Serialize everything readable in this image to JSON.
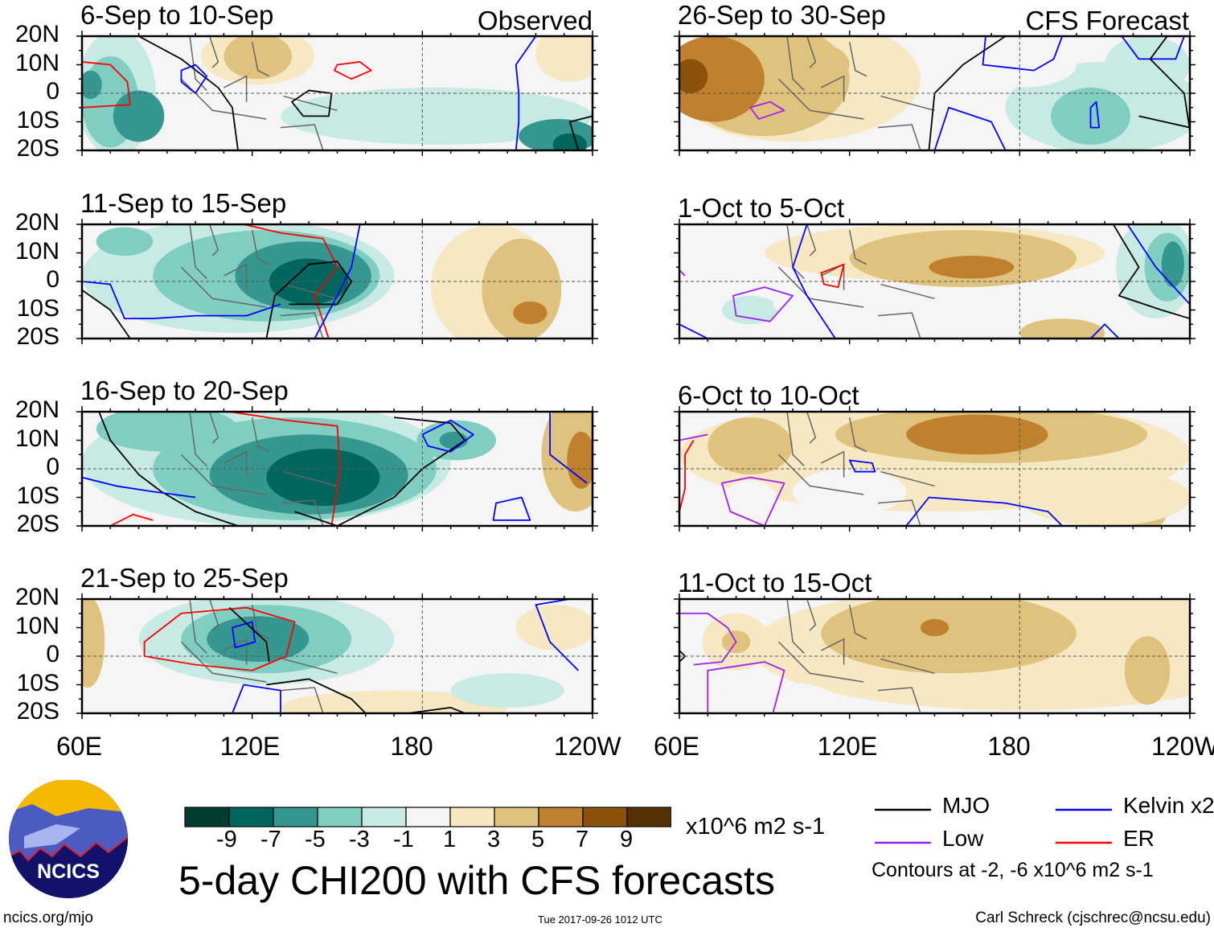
{
  "chart_data": [
    {
      "type": "heatmap",
      "title": "6-Sep to 10-Sep",
      "tag": "Observed",
      "xlim": [
        "60E",
        "120W"
      ],
      "ylim": [
        "20S",
        "20N"
      ]
    },
    {
      "type": "heatmap",
      "title": "11-Sep to 15-Sep",
      "tag": "",
      "xlim": [
        "60E",
        "120W"
      ],
      "ylim": [
        "20S",
        "20N"
      ]
    },
    {
      "type": "heatmap",
      "title": "16-Sep to 20-Sep",
      "tag": "",
      "xlim": [
        "60E",
        "120W"
      ],
      "ylim": [
        "20S",
        "20N"
      ]
    },
    {
      "type": "heatmap",
      "title": "21-Sep to 25-Sep",
      "tag": "",
      "xlim": [
        "60E",
        "120W"
      ],
      "ylim": [
        "20S",
        "20N"
      ]
    },
    {
      "type": "heatmap",
      "title": "26-Sep to 30-Sep",
      "tag": "CFS Forecast",
      "xlim": [
        "60E",
        "120W"
      ],
      "ylim": [
        "20S",
        "20N"
      ]
    },
    {
      "type": "heatmap",
      "title": "1-Oct to 5-Oct",
      "tag": "",
      "xlim": [
        "60E",
        "120W"
      ],
      "ylim": [
        "20S",
        "20N"
      ]
    },
    {
      "type": "heatmap",
      "title": "6-Oct to 10-Oct",
      "tag": "",
      "xlim": [
        "60E",
        "120W"
      ],
      "ylim": [
        "20S",
        "20N"
      ]
    },
    {
      "type": "heatmap",
      "title": "11-Oct to 15-Oct",
      "tag": "",
      "xlim": [
        "60E",
        "120W"
      ],
      "ylim": [
        "20S",
        "20N"
      ]
    }
  ],
  "lat_labels": [
    "20N",
    "10N",
    "0",
    "10S",
    "20S"
  ],
  "lon_labels": [
    "60E",
    "120E",
    "180",
    "120W"
  ],
  "colorbar": {
    "colors": [
      "#003c30",
      "#01665e",
      "#35978f",
      "#80cdc1",
      "#c7eae5",
      "#f5f5f5",
      "#f6e8c3",
      "#dfc27d",
      "#bf812d",
      "#8c510a",
      "#543005"
    ],
    "labels": [
      "-9",
      "-7",
      "-5",
      "-3",
      "-1",
      "1",
      "3",
      "5",
      "7",
      "9"
    ],
    "units": "x10^6 m2 s-1"
  },
  "title": "5-day CHI200 with CFS forecasts",
  "legend": [
    {
      "label": "MJO",
      "color": "#000000"
    },
    {
      "label": "Kelvin x2",
      "color": "#0000ff"
    },
    {
      "label": "Low",
      "color": "#a020f0"
    },
    {
      "label": "ER",
      "color": "#ff0000"
    }
  ],
  "contours_note": "Contours at -2, -6 x10^6 m2 s-1",
  "logo_text": "NCICS",
  "footer": {
    "url": "ncics.org/mjo",
    "timestamp": "Tue 2017-09-26 1012 UTC",
    "author": "Carl Schreck (cjschrec@ncsu.edu)"
  }
}
